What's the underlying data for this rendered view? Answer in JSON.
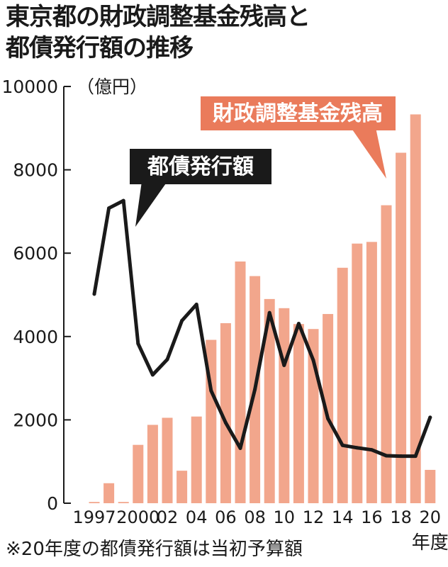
{
  "title_lines": [
    "東京都の財政調整基金残高と",
    "都債発行額の推移"
  ],
  "footnote": "※20年度の都債発行額は当初予算額",
  "chart_data": {
    "type": "bar+line",
    "x": [
      1997,
      1998,
      1999,
      2000,
      2001,
      2002,
      2003,
      2004,
      2005,
      2006,
      2007,
      2008,
      2009,
      2010,
      2011,
      2012,
      2013,
      2014,
      2015,
      2016,
      2017,
      2018,
      2019,
      2020
    ],
    "x_tick_labels": [
      {
        "x": 1997,
        "label": "1997"
      },
      {
        "x": 2000,
        "label": "2000"
      },
      {
        "x": 2002,
        "label": "02"
      },
      {
        "x": 2004,
        "label": "04"
      },
      {
        "x": 2006,
        "label": "06"
      },
      {
        "x": 2008,
        "label": "08"
      },
      {
        "x": 2010,
        "label": "10"
      },
      {
        "x": 2012,
        "label": "12"
      },
      {
        "x": 2014,
        "label": "14"
      },
      {
        "x": 2016,
        "label": "16"
      },
      {
        "x": 2018,
        "label": "18"
      },
      {
        "x": 2020,
        "label": "20"
      }
    ],
    "x_unit": "年度",
    "y_unit": "（億円）",
    "y_ticks": [
      0,
      2000,
      4000,
      6000,
      8000,
      10000
    ],
    "ylim": [
      0,
      10000
    ],
    "grid": false,
    "series": [
      {
        "name": "財政調整基金残高",
        "type": "bar",
        "color": "#f2a68c",
        "values": [
          30,
          480,
          30,
          1400,
          1880,
          2050,
          780,
          2080,
          3920,
          4320,
          5800,
          5450,
          4900,
          4680,
          4300,
          4180,
          4540,
          5650,
          6230,
          6270,
          7150,
          8410,
          9330,
          800
        ]
      },
      {
        "name": "都債発行額",
        "type": "line",
        "color": "#1a1a1a",
        "values": [
          5020,
          7080,
          7260,
          3830,
          3080,
          3450,
          4380,
          4770,
          2700,
          1930,
          1320,
          2730,
          4570,
          3310,
          4310,
          3430,
          2030,
          1390,
          1330,
          1280,
          1140,
          1130,
          1130,
          2060
        ]
      }
    ],
    "annotations": [
      {
        "series": "都債発行額",
        "text": "都債発行額",
        "box_color": "#1a1a1a",
        "text_color": "#ffffff"
      },
      {
        "series": "財政調整基金残高",
        "text": "財政調整基金残高",
        "box_color": "#ea7b5b",
        "text_color": "#ffffff"
      }
    ]
  }
}
